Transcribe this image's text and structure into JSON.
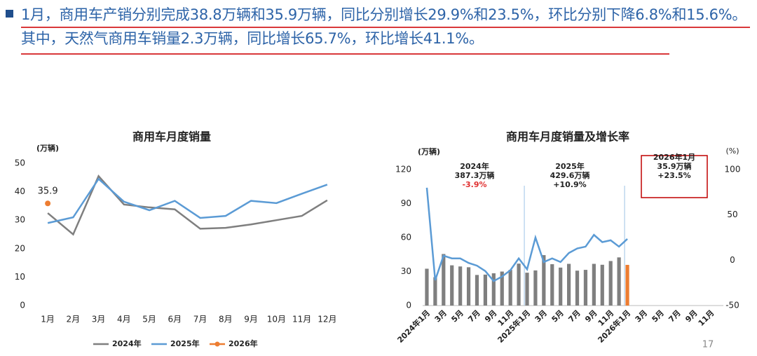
{
  "header": {
    "text": "1月，商用车产销分别完成38.8万辆和35.9万辆，同比分别增长29.9%和23.5%，环比分别下降6.8%和15.6%。其中，天然气商用车销量2.3万辆，同比增长65.7%，环比增长41.1%。"
  },
  "page_number": "17",
  "chart_data": [
    {
      "type": "line",
      "title": "商用车月度销量",
      "y_label": "(万辆)",
      "categories": [
        "1月",
        "2月",
        "3月",
        "4月",
        "5月",
        "6月",
        "7月",
        "8月",
        "9月",
        "10月",
        "11月",
        "12月"
      ],
      "series": [
        {
          "name": "2024年",
          "color": "#7f7f7f",
          "values": [
            32.5,
            25,
            45.5,
            35.5,
            34.5,
            33.8,
            27,
            27.3,
            28.5,
            30,
            31.5,
            37
          ]
        },
        {
          "name": "2025年",
          "color": "#5b9bd5",
          "values": [
            29,
            31,
            44.5,
            36.5,
            33.5,
            36.8,
            30.8,
            31.5,
            36.8,
            36,
            39.3,
            42.5
          ]
        },
        {
          "name": "2026年",
          "color": "#ed7d31",
          "values": [
            35.9,
            null,
            null,
            null,
            null,
            null,
            null,
            null,
            null,
            null,
            null,
            null
          ]
        }
      ],
      "ylim": [
        0,
        50
      ],
      "yticks": [
        0,
        10,
        20,
        30,
        40,
        50
      ]
    },
    {
      "type": "combo",
      "title": "商用车月度销量及增长率",
      "y_label": "(万辆)",
      "y2_label": "(%)",
      "categories": [
        "2024年1月",
        null,
        "3月",
        null,
        "5月",
        null,
        "7月",
        null,
        "9月",
        null,
        "11月",
        null,
        "2025年1月",
        null,
        "3月",
        null,
        "5月",
        null,
        "7月",
        null,
        "9月",
        null,
        "11月",
        null,
        "2026年1月",
        null,
        "3月",
        null,
        "5月",
        null,
        "7月",
        null,
        "9月",
        null,
        "11月",
        null
      ],
      "bars": {
        "values": [
          32.5,
          25,
          45.5,
          35.5,
          34.5,
          33.8,
          27,
          27.3,
          28.5,
          30,
          31.5,
          37,
          29,
          31,
          44.5,
          36.5,
          33.5,
          36.8,
          30.8,
          31.5,
          36.8,
          36,
          39.3,
          42.5,
          35.9,
          null,
          null,
          null,
          null,
          null,
          null,
          null,
          null,
          null,
          null,
          null
        ],
        "colors": [
          "#7f7f7f",
          "#7f7f7f",
          "#7f7f7f",
          "#7f7f7f",
          "#7f7f7f",
          "#7f7f7f",
          "#7f7f7f",
          "#7f7f7f",
          "#7f7f7f",
          "#7f7f7f",
          "#7f7f7f",
          "#7f7f7f",
          "#7f7f7f",
          "#7f7f7f",
          "#7f7f7f",
          "#7f7f7f",
          "#7f7f7f",
          "#7f7f7f",
          "#7f7f7f",
          "#7f7f7f",
          "#7f7f7f",
          "#7f7f7f",
          "#7f7f7f",
          "#7f7f7f",
          "#ed7d31",
          null,
          null,
          null,
          null,
          null,
          null,
          null,
          null,
          null,
          null,
          null
        ]
      },
      "line": {
        "color": "#5b9bd5",
        "axis": "y2",
        "values": [
          80,
          -22,
          5,
          2,
          2,
          -3,
          -6,
          -12,
          -23,
          -18,
          -11,
          2,
          -10,
          25,
          -2,
          2,
          -2,
          8,
          13,
          15,
          28,
          20,
          22,
          15,
          23.5,
          null,
          null,
          null,
          null,
          null,
          null,
          null,
          null,
          null,
          null,
          null
        ]
      },
      "ylim": [
        0,
        120
      ],
      "yticks": [
        0,
        30,
        60,
        90,
        120
      ],
      "y2lim": [
        -50,
        100
      ],
      "y2ticks": [
        -50,
        0,
        50,
        100
      ],
      "annotations": [
        [
          "2024年",
          "387.3万辆",
          "-3.9%"
        ],
        [
          "2025年",
          "429.6万辆",
          "+10.9%"
        ],
        [
          "2026年1月",
          "35.9万辆",
          "+23.5%"
        ]
      ]
    }
  ]
}
